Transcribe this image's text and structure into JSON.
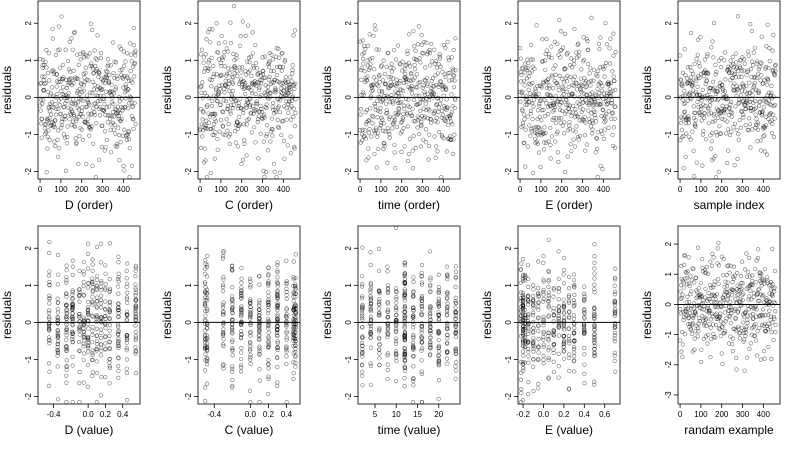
{
  "figure": {
    "ylabel": "residuals"
  },
  "chart_data": [
    {
      "type": "scatter",
      "xlabel": "D (order)",
      "ylabel": "residuals",
      "xlim": [
        -10,
        480
      ],
      "ylim": [
        -2.2,
        2.6
      ],
      "xticks": [
        0,
        100,
        200,
        300,
        400
      ],
      "xtick_labels": [
        "0",
        "100",
        "200",
        "300",
        "400"
      ],
      "yticks": [
        -2,
        -1,
        0,
        1,
        2
      ],
      "ytick_labels": [
        "-2",
        "-1",
        "0",
        "1",
        "2"
      ],
      "reference_line_y": 0,
      "x_pattern": "index",
      "n_points": 460,
      "seed": 11
    },
    {
      "type": "scatter",
      "xlabel": "C (order)",
      "ylabel": "residuals",
      "xlim": [
        -10,
        480
      ],
      "ylim": [
        -2.2,
        2.6
      ],
      "xticks": [
        0,
        100,
        200,
        300,
        400
      ],
      "xtick_labels": [
        "0",
        "100",
        "200",
        "300",
        "400"
      ],
      "yticks": [
        -2,
        -1,
        0,
        1,
        2
      ],
      "ytick_labels": [
        "-2",
        "-1",
        "0",
        "1",
        "2"
      ],
      "reference_line_y": 0,
      "x_pattern": "index",
      "n_points": 460,
      "seed": 23
    },
    {
      "type": "scatter",
      "xlabel": "time (order)",
      "ylabel": "residuals",
      "xlim": [
        -10,
        480
      ],
      "ylim": [
        -2.2,
        2.6
      ],
      "xticks": [
        0,
        100,
        200,
        300,
        400
      ],
      "xtick_labels": [
        "0",
        "100",
        "200",
        "300",
        "400"
      ],
      "yticks": [
        -2,
        -1,
        0,
        1,
        2
      ],
      "ytick_labels": [
        "-2",
        "-1",
        "0",
        "1",
        "2"
      ],
      "reference_line_y": 0,
      "x_pattern": "index",
      "n_points": 460,
      "seed": 37
    },
    {
      "type": "scatter",
      "xlabel": "E (order)",
      "ylabel": "residuals",
      "xlim": [
        -10,
        480
      ],
      "ylim": [
        -2.2,
        2.6
      ],
      "xticks": [
        0,
        100,
        200,
        300,
        400
      ],
      "xtick_labels": [
        "0",
        "100",
        "200",
        "300",
        "400"
      ],
      "yticks": [
        -2,
        -1,
        0,
        1,
        2
      ],
      "ytick_labels": [
        "-2",
        "-1",
        "0",
        "1",
        "2"
      ],
      "reference_line_y": 0,
      "x_pattern": "index",
      "n_points": 460,
      "seed": 41
    },
    {
      "type": "scatter",
      "xlabel": "sample index",
      "ylabel": "residuals",
      "xlim": [
        -10,
        480
      ],
      "ylim": [
        -2.2,
        2.6
      ],
      "xticks": [
        0,
        100,
        200,
        300,
        400
      ],
      "xtick_labels": [
        "0",
        "100",
        "200",
        "300",
        "400"
      ],
      "yticks": [
        -2,
        -1,
        0,
        1,
        2
      ],
      "ytick_labels": [
        "-2",
        "-1",
        "0",
        "1",
        "2"
      ],
      "reference_line_y": 0,
      "x_pattern": "index",
      "n_points": 460,
      "seed": 53
    },
    {
      "type": "scatter",
      "xlabel": "D (value)",
      "ylabel": "residuals",
      "xlim": [
        -0.58,
        0.6
      ],
      "ylim": [
        -2.2,
        2.6
      ],
      "xticks": [
        -0.4,
        0.0,
        0.2,
        0.4
      ],
      "xtick_labels": [
        "-0.4",
        "0.0",
        "0.2",
        "0.4"
      ],
      "yticks": [
        -2,
        -1,
        0,
        1,
        2
      ],
      "ytick_labels": [
        "-2",
        "-1",
        "0",
        "1",
        "2"
      ],
      "reference_line_y": 0,
      "x_pattern": "levels",
      "x_levels": [
        -0.45,
        -0.35,
        -0.25,
        -0.18,
        -0.1,
        -0.05,
        0.0,
        0.05,
        0.1,
        0.15,
        0.2,
        0.25,
        0.35,
        0.45,
        0.55
      ],
      "n_points": 460,
      "seed": 67
    },
    {
      "type": "scatter",
      "xlabel": "C (value)",
      "ylabel": "residuals",
      "xlim": [
        -0.58,
        0.55
      ],
      "ylim": [
        -2.2,
        2.6
      ],
      "xticks": [
        -0.4,
        0.0,
        0.2,
        0.4
      ],
      "xtick_labels": [
        "-0.4",
        "0.0",
        "0.2",
        "0.4"
      ],
      "yticks": [
        -2,
        -1,
        0,
        1,
        2
      ],
      "ytick_labels": [
        "-2",
        "-1",
        "0",
        "1",
        "2"
      ],
      "reference_line_y": 0,
      "x_pattern": "levels",
      "x_levels": [
        -0.5,
        -0.48,
        -0.3,
        -0.2,
        -0.1,
        0.0,
        0.1,
        0.2,
        0.3,
        0.4,
        0.48,
        0.5
      ],
      "n_points": 460,
      "seed": 71
    },
    {
      "type": "scatter",
      "xlabel": "time (value)",
      "ylabel": "residuals",
      "xlim": [
        1,
        25
      ],
      "ylim": [
        -2.2,
        2.6
      ],
      "xticks": [
        5,
        10,
        15,
        20
      ],
      "xtick_labels": [
        "5",
        "10",
        "15",
        "20"
      ],
      "yticks": [
        -2,
        -1,
        0,
        1,
        2
      ],
      "ytick_labels": [
        "-2",
        "-1",
        "0",
        "1",
        "2"
      ],
      "reference_line_y": 0,
      "x_pattern": "levels",
      "x_levels": [
        2,
        4,
        6,
        8,
        10,
        12,
        12,
        14,
        16,
        18,
        20,
        22,
        24
      ],
      "n_points": 460,
      "seed": 83
    },
    {
      "type": "scatter",
      "xlabel": "E (value)",
      "ylabel": "residuals",
      "xlim": [
        -0.25,
        0.75
      ],
      "ylim": [
        -2.2,
        2.6
      ],
      "xticks": [
        -0.2,
        0.0,
        0.2,
        0.4,
        0.6
      ],
      "xtick_labels": [
        "-0.2",
        "0.0",
        "0.2",
        "0.4",
        "0.6"
      ],
      "yticks": [
        -2,
        -1,
        0,
        1,
        2
      ],
      "ytick_labels": [
        "-2",
        "-1",
        "0",
        "1",
        "2"
      ],
      "reference_line_y": 0,
      "x_pattern": "levels",
      "x_levels": [
        -0.22,
        -0.2,
        -0.2,
        -0.18,
        -0.15,
        -0.1,
        -0.05,
        0.0,
        0.05,
        0.1,
        0.15,
        0.2,
        0.25,
        0.3,
        0.4,
        0.5,
        0.7
      ],
      "n_points": 460,
      "seed": 97
    },
    {
      "type": "scatter",
      "xlabel": "randam example",
      "ylabel": "residuals",
      "xlim": [
        -10,
        480
      ],
      "ylim": [
        -3.3,
        2.6
      ],
      "xticks": [
        0,
        100,
        200,
        300,
        400
      ],
      "xtick_labels": [
        "0",
        "100",
        "200",
        "300",
        "400"
      ],
      "yticks": [
        -3,
        -2,
        -1,
        0,
        1,
        2
      ],
      "ytick_labels": [
        "-3",
        "-2",
        "-1",
        "0",
        "1",
        "2"
      ],
      "reference_line_y": 0,
      "x_pattern": "index",
      "n_points": 460,
      "seed": 101
    }
  ]
}
